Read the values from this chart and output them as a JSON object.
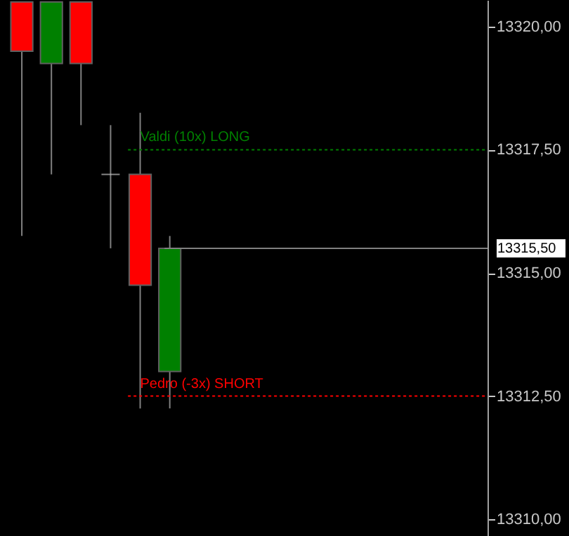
{
  "chart_data": {
    "type": "candlestick",
    "categories": [
      null,
      null,
      null,
      null,
      null,
      null,
      null,
      null,
      null,
      null,
      null,
      null,
      null,
      null,
      null,
      null
    ],
    "ohlc": [
      [
        13320.5,
        13320.5,
        13315.75,
        13319.5
      ],
      [
        13319.25,
        13320.5,
        13317.0,
        13320.5
      ],
      [
        13320.5,
        13320.5,
        13318.0,
        13319.25
      ],
      [
        13317.0,
        13318.0,
        13315.5,
        13317.0
      ],
      [
        13317.0,
        13318.25,
        13312.25,
        13314.75
      ],
      [
        13313.0,
        13315.75,
        13312.25,
        13315.5
      ],
      null,
      null,
      null,
      null,
      null,
      null,
      null,
      null,
      null,
      null
    ],
    "colors": [
      "#ff0000",
      "#008000",
      "#ff0000",
      "#c0c0c0",
      "#ff0000",
      "#008000",
      null,
      null,
      null,
      null,
      null,
      null,
      null,
      null,
      null,
      null
    ],
    "ylim": [
      13309.66,
      13320.54
    ],
    "yticks": [
      {
        "value": 13310,
        "label": "13310,00"
      },
      {
        "value": 13312.5,
        "label": "13312,50"
      },
      {
        "value": 13315,
        "label": "13315,00"
      },
      {
        "value": 13317.5,
        "label": "13317,50"
      },
      {
        "value": 13320,
        "label": "13320,00"
      }
    ],
    "ref_lines": [
      {
        "axis": "y",
        "value": 13317.5,
        "label": "Valdi (10x) LONG",
        "color": "#008000",
        "line_style": "dotted"
      },
      {
        "axis": "y",
        "value": 13312.5,
        "label": "Pedro (-3x) SHORT",
        "color": "#ff0000",
        "line_style": "dotted"
      },
      {
        "axis": "y",
        "value": 13315.5,
        "label": "13315,50",
        "color": "#808080",
        "line_style": "solid"
      }
    ],
    "grid": false
  }
}
